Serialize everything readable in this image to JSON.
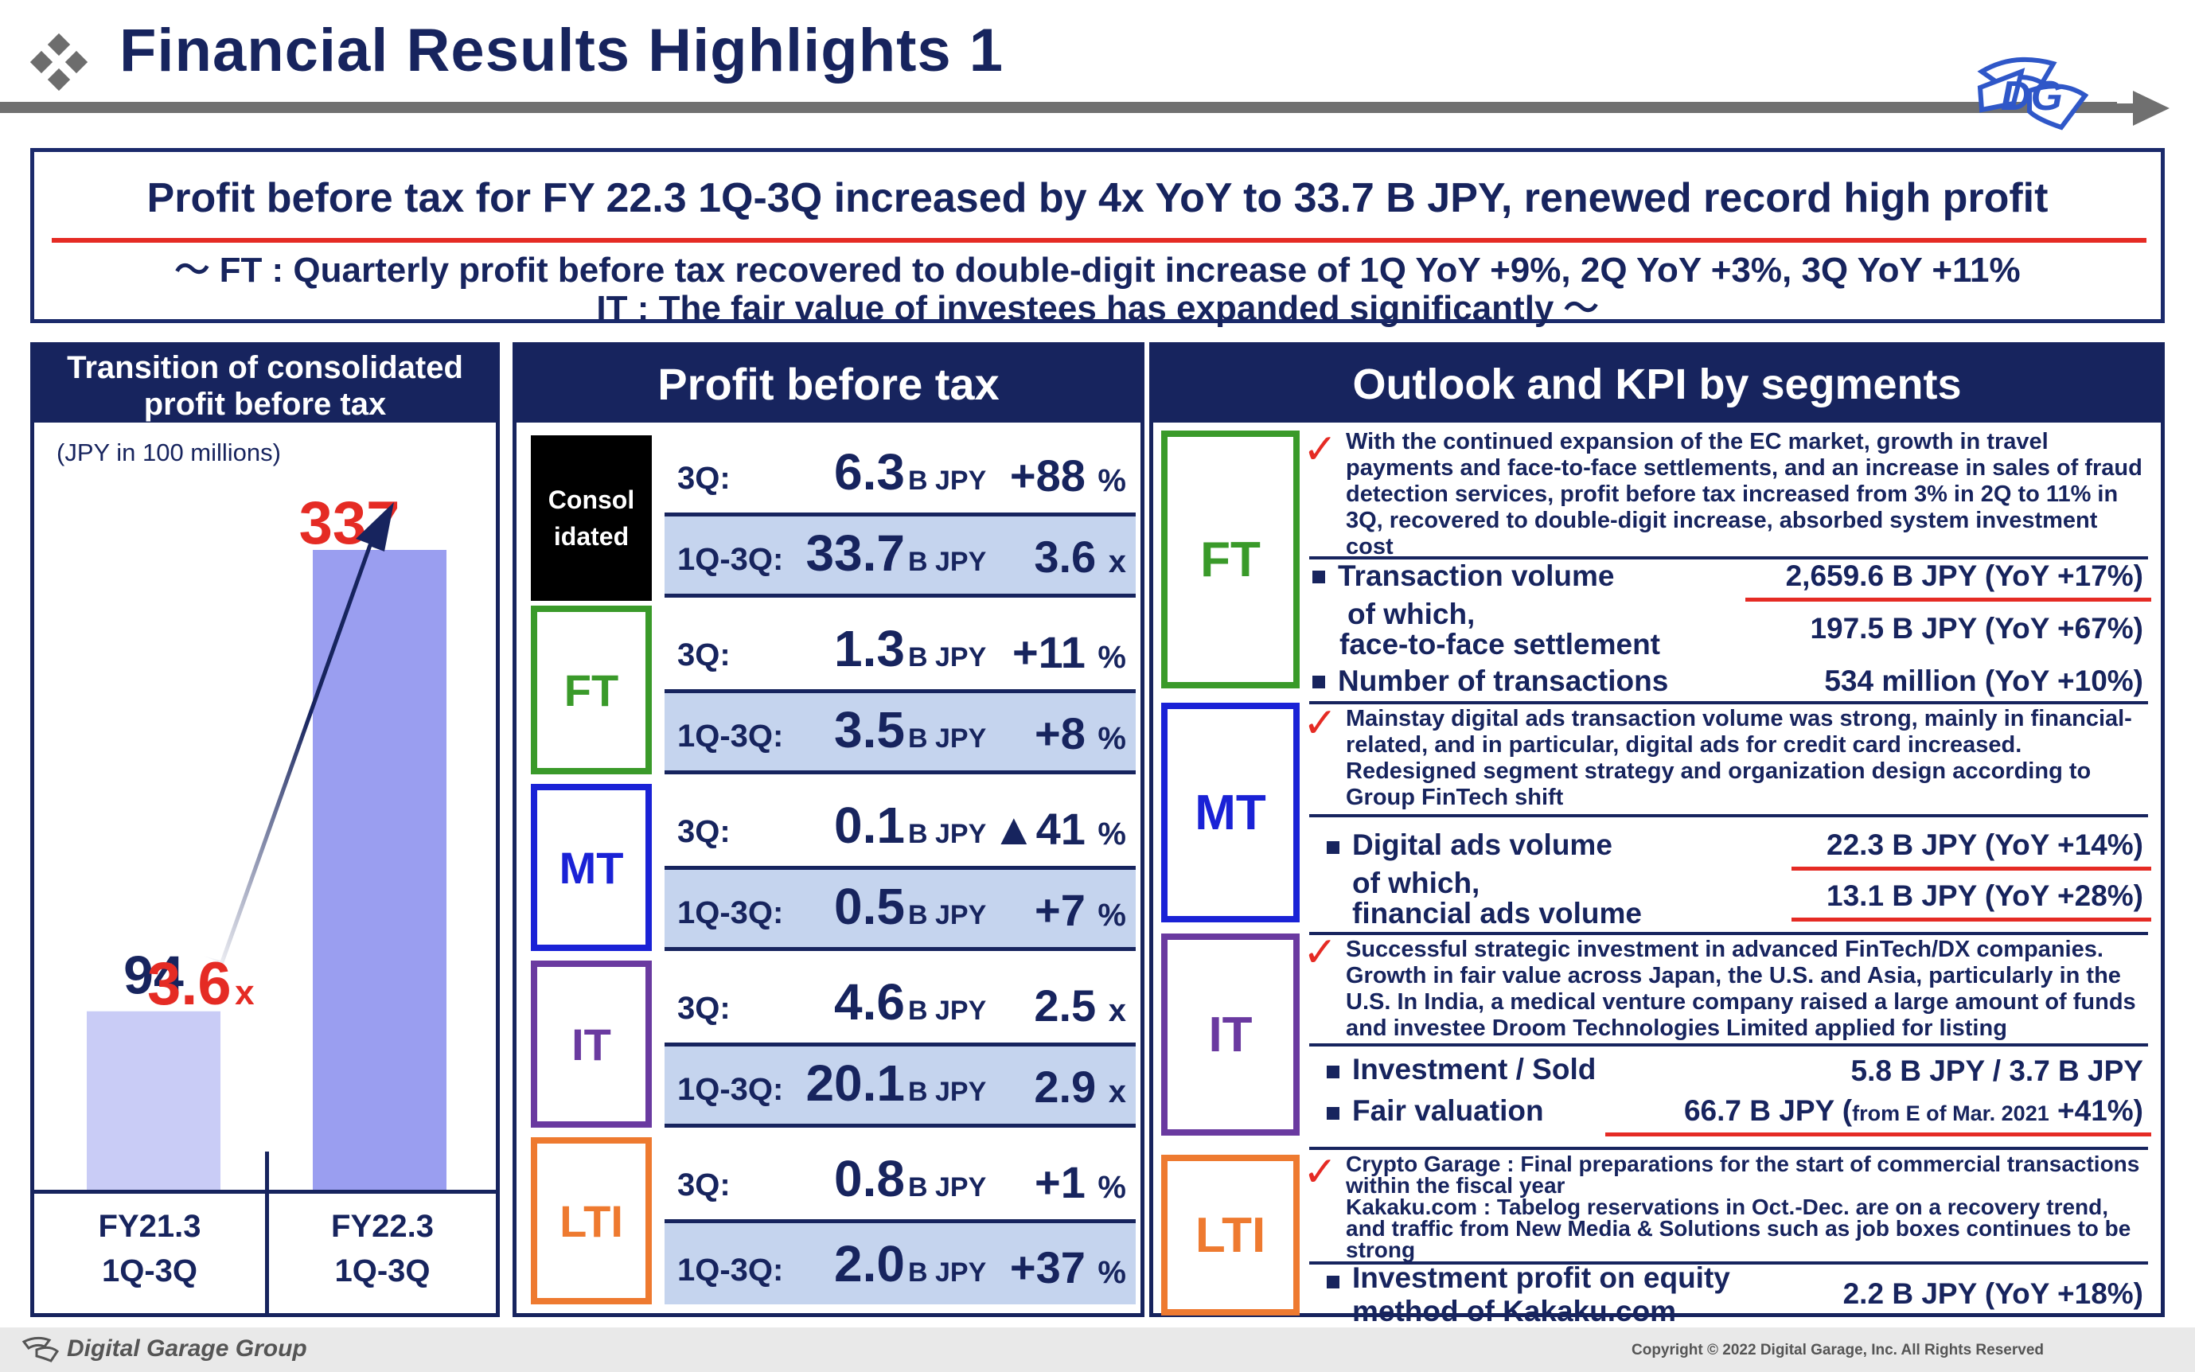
{
  "header": {
    "title": "Financial Results Highlights 1",
    "logo_text": "DG"
  },
  "summary": {
    "headline": "Profit before tax for FY 22.3 1Q-3Q increased by 4x YoY to 33.7 B JPY, renewed record high profit",
    "line1": "～ FT : Quarterly profit before tax recovered to double-digit increase of 1Q YoY +9%, 2Q YoY +3%, 3Q YoY +11%",
    "line2": "IT : The fair value of investees has expanded significantly ～"
  },
  "chart_panel": {
    "heading_line1": "Transition of consolidated",
    "heading_line2": "profit before tax",
    "unit_note": "(JPY in 100 millions)",
    "growth_value": "3.6",
    "growth_unit": "x",
    "colors": {
      "bar1": "#c9ccf6",
      "bar2": "#9a9ef0",
      "accent": "#e52b24"
    }
  },
  "chart_data": {
    "type": "bar",
    "title": "Transition of consolidated profit before tax",
    "unit": "(JPY in 100 millions)",
    "categories": [
      [
        "FY21.3",
        "1Q-3Q"
      ],
      [
        "FY22.3",
        "1Q-3Q"
      ]
    ],
    "values": [
      94,
      337
    ],
    "value_labels": [
      "94",
      "337"
    ],
    "ylim": [
      0,
      337
    ],
    "annotation": "3.6 x"
  },
  "profit_panel": {
    "heading": "Profit before tax",
    "segments": [
      {
        "name_line1": "Consol",
        "name_line2": "idated",
        "color": "#000000",
        "q3": {
          "label": "3Q:",
          "value": "6.3",
          "unit": "B JPY",
          "change": "+88",
          "change_unit": "%"
        },
        "ytd": {
          "label": "1Q-3Q:",
          "value": "33.7",
          "unit": "B JPY",
          "change": "3.6",
          "change_unit": "x"
        }
      },
      {
        "name_line1": "FT",
        "color": "#3a9a2a",
        "q3": {
          "label": "3Q:",
          "value": "1.3",
          "unit": "B JPY",
          "change": "+11",
          "change_unit": "%"
        },
        "ytd": {
          "label": "1Q-3Q:",
          "value": "3.5",
          "unit": "B JPY",
          "change": "+8",
          "change_unit": "%"
        }
      },
      {
        "name_line1": "MT",
        "color": "#1a22d6",
        "q3": {
          "label": "3Q:",
          "value": "0.1",
          "unit": "B JPY",
          "change": "▲41",
          "change_unit": "%"
        },
        "ytd": {
          "label": "1Q-3Q:",
          "value": "0.5",
          "unit": "B JPY",
          "change": "+7",
          "change_unit": "%"
        }
      },
      {
        "name_line1": "IT",
        "color": "#6a3aa0",
        "q3": {
          "label": "3Q:",
          "value": "4.6",
          "unit": "B JPY",
          "change": "2.5",
          "change_unit": "x"
        },
        "ytd": {
          "label": "1Q-3Q:",
          "value": "20.1",
          "unit": "B JPY",
          "change": "2.9",
          "change_unit": "x"
        }
      },
      {
        "name_line1": "LTI",
        "color": "#ee7a30",
        "q3": {
          "label": "3Q:",
          "value": "0.8",
          "unit": "B JPY",
          "change": "+1",
          "change_unit": "%"
        },
        "ytd": {
          "label": "1Q-3Q:",
          "value": "2.0",
          "unit": "B JPY",
          "change": "+37",
          "change_unit": "%"
        }
      }
    ]
  },
  "outlook_panel": {
    "heading": "Outlook and KPI by segments",
    "ft": {
      "name": "FT",
      "desc": "With the continued expansion of the EC market, growth in travel payments and face-to-face settlements, and an increase in sales of fraud detection services, profit before tax increased from 3% in 2Q to 11% in 3Q, recovered to double-digit increase, absorbed system investment cost",
      "kpi1_label": "Transaction volume",
      "kpi1_value": "2,659.6 B JPY (YoY +17%)",
      "kpi2_label_line1": "of which,",
      "kpi2_label_line2": "face-to-face settlement",
      "kpi2_value": "197.5 B JPY  (YoY +67%)",
      "kpi3_label": "Number of transactions",
      "kpi3_value": "534 million (YoY +10%)"
    },
    "mt": {
      "name": "MT",
      "desc": "Mainstay digital ads transaction volume was strong, mainly in financial-related, and in particular, digital ads for credit card increased. Redesigned segment strategy and organization design according to Group FinTech shift",
      "kpi1_label": "Digital ads volume",
      "kpi1_value": "22.3 B JPY (YoY +14%)",
      "kpi2_label_line1": "of which,",
      "kpi2_label_line2": "financial ads volume",
      "kpi2_value": "13.1 B JPY (YoY +28%)"
    },
    "it": {
      "name": "IT",
      "desc": "Successful strategic investment in advanced FinTech/DX companies. Growth in fair value across Japan, the U.S. and Asia, particularly in the U.S. In India, a medical venture company raised a large amount of funds and investee Droom Technologies Limited applied for listing",
      "kpi1_label": "Investment / Sold",
      "kpi1_value": "5.8 B JPY / 3.7 B JPY",
      "kpi2_label": "Fair valuation",
      "kpi2_value_main": "66.7 B JPY (",
      "kpi2_value_small": "from E of Mar. 2021",
      "kpi2_value_tail": " +41%)"
    },
    "lti": {
      "name": "LTI",
      "desc_line1": "Crypto Garage : Final preparations for the start of commercial transactions within the fiscal year",
      "desc_line2": "Kakaku.com : Tabelog reservations in Oct.-Dec. are on a recovery trend, and traffic from New Media & Solutions such as job boxes continues to be strong",
      "kpi1_label_line1": "Investment profit on equity",
      "kpi1_label_line2": "method of Kakaku.com",
      "kpi1_value": "2.2 B JPY (YoY +18%)"
    }
  },
  "footer": {
    "company": "Digital Garage Group",
    "copyright": "Copyright © 2022 Digital Garage, Inc. All Rights Reserved"
  }
}
